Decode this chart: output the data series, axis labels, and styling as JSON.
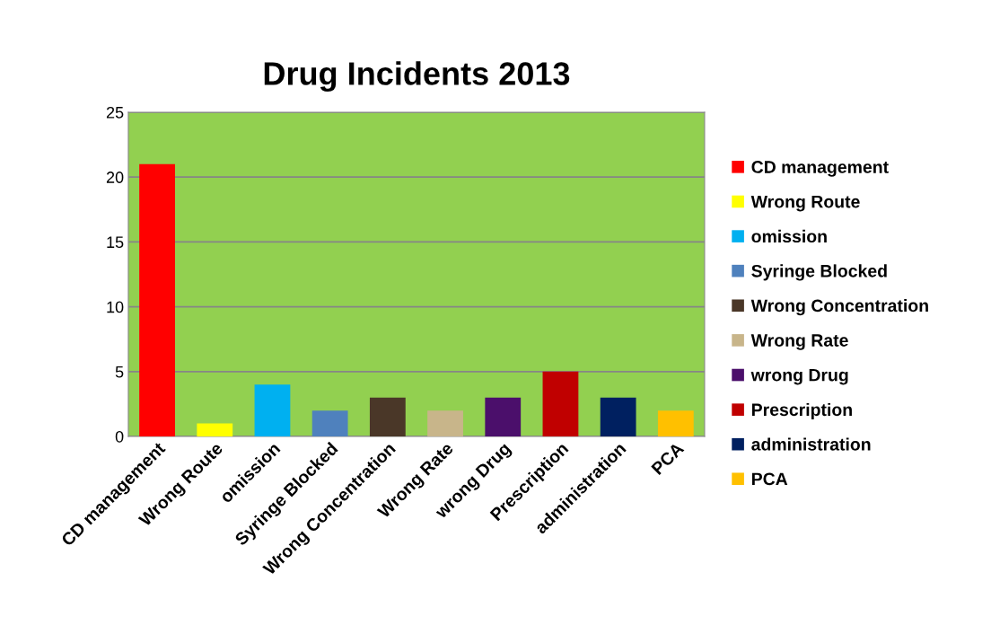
{
  "chart_data": {
    "type": "bar",
    "title": "Drug Incidents 2013",
    "categories": [
      "CD management",
      "Wrong Route",
      "omission",
      "Syringe Blocked",
      "Wrong Concentration",
      "Wrong Rate",
      "wrong Drug",
      "Prescription",
      "administration",
      "PCA"
    ],
    "series": [
      {
        "name": "CD management",
        "color": "#ff0000",
        "values": [
          21,
          null,
          null,
          null,
          null,
          null,
          null,
          null,
          null,
          null
        ]
      },
      {
        "name": "Wrong Route",
        "color": "#ffff00",
        "values": [
          null,
          1,
          null,
          null,
          null,
          null,
          null,
          null,
          null,
          null
        ]
      },
      {
        "name": "omission",
        "color": "#00b0f0",
        "values": [
          null,
          null,
          4,
          null,
          null,
          null,
          null,
          null,
          null,
          null
        ]
      },
      {
        "name": "Syringe Blocked",
        "color": "#4f81bd",
        "values": [
          null,
          null,
          null,
          2,
          null,
          null,
          null,
          null,
          null,
          null
        ]
      },
      {
        "name": "Wrong Concentration",
        "color": "#4a3728",
        "values": [
          null,
          null,
          null,
          null,
          3,
          null,
          null,
          null,
          null,
          null
        ]
      },
      {
        "name": "Wrong Rate",
        "color": "#c8b58a",
        "values": [
          null,
          null,
          null,
          null,
          null,
          2,
          null,
          null,
          null,
          null
        ]
      },
      {
        "name": "wrong Drug",
        "color": "#4b0f6b",
        "values": [
          null,
          null,
          null,
          null,
          null,
          null,
          3,
          null,
          null,
          null
        ]
      },
      {
        "name": "Prescription",
        "color": "#c00000",
        "values": [
          null,
          null,
          null,
          null,
          null,
          null,
          null,
          5,
          null,
          null
        ]
      },
      {
        "name": "administration",
        "color": "#002060",
        "values": [
          null,
          null,
          null,
          null,
          null,
          null,
          null,
          null,
          3,
          null
        ]
      },
      {
        "name": "PCA",
        "color": "#ffc000",
        "values": [
          null,
          null,
          null,
          null,
          null,
          null,
          null,
          null,
          null,
          2
        ]
      }
    ],
    "ylim": [
      0,
      25
    ],
    "yticks": [
      0,
      5,
      10,
      15,
      20,
      25
    ],
    "grid": "y",
    "legend": "right"
  }
}
